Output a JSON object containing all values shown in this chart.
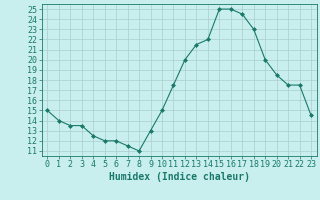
{
  "x": [
    0,
    1,
    2,
    3,
    4,
    5,
    6,
    7,
    8,
    9,
    10,
    11,
    12,
    13,
    14,
    15,
    16,
    17,
    18,
    19,
    20,
    21,
    22,
    23
  ],
  "y": [
    15.0,
    14.0,
    13.5,
    13.5,
    12.5,
    12.0,
    12.0,
    11.5,
    11.0,
    13.0,
    15.0,
    17.5,
    20.0,
    21.5,
    22.0,
    25.0,
    25.0,
    24.5,
    23.0,
    20.0,
    18.5,
    17.5,
    17.5,
    14.5
  ],
  "line_color": "#1a7a6a",
  "marker": "D",
  "marker_size": 2,
  "bg_color": "#c8eeee",
  "grid_color": "#aacece",
  "xlabel": "Humidex (Indice chaleur)",
  "ylabel_ticks": [
    11,
    12,
    13,
    14,
    15,
    16,
    17,
    18,
    19,
    20,
    21,
    22,
    23,
    24,
    25
  ],
  "xlim": [
    -0.5,
    23.5
  ],
  "ylim": [
    10.5,
    25.5
  ],
  "tick_fontsize": 6,
  "xlabel_fontsize": 7
}
